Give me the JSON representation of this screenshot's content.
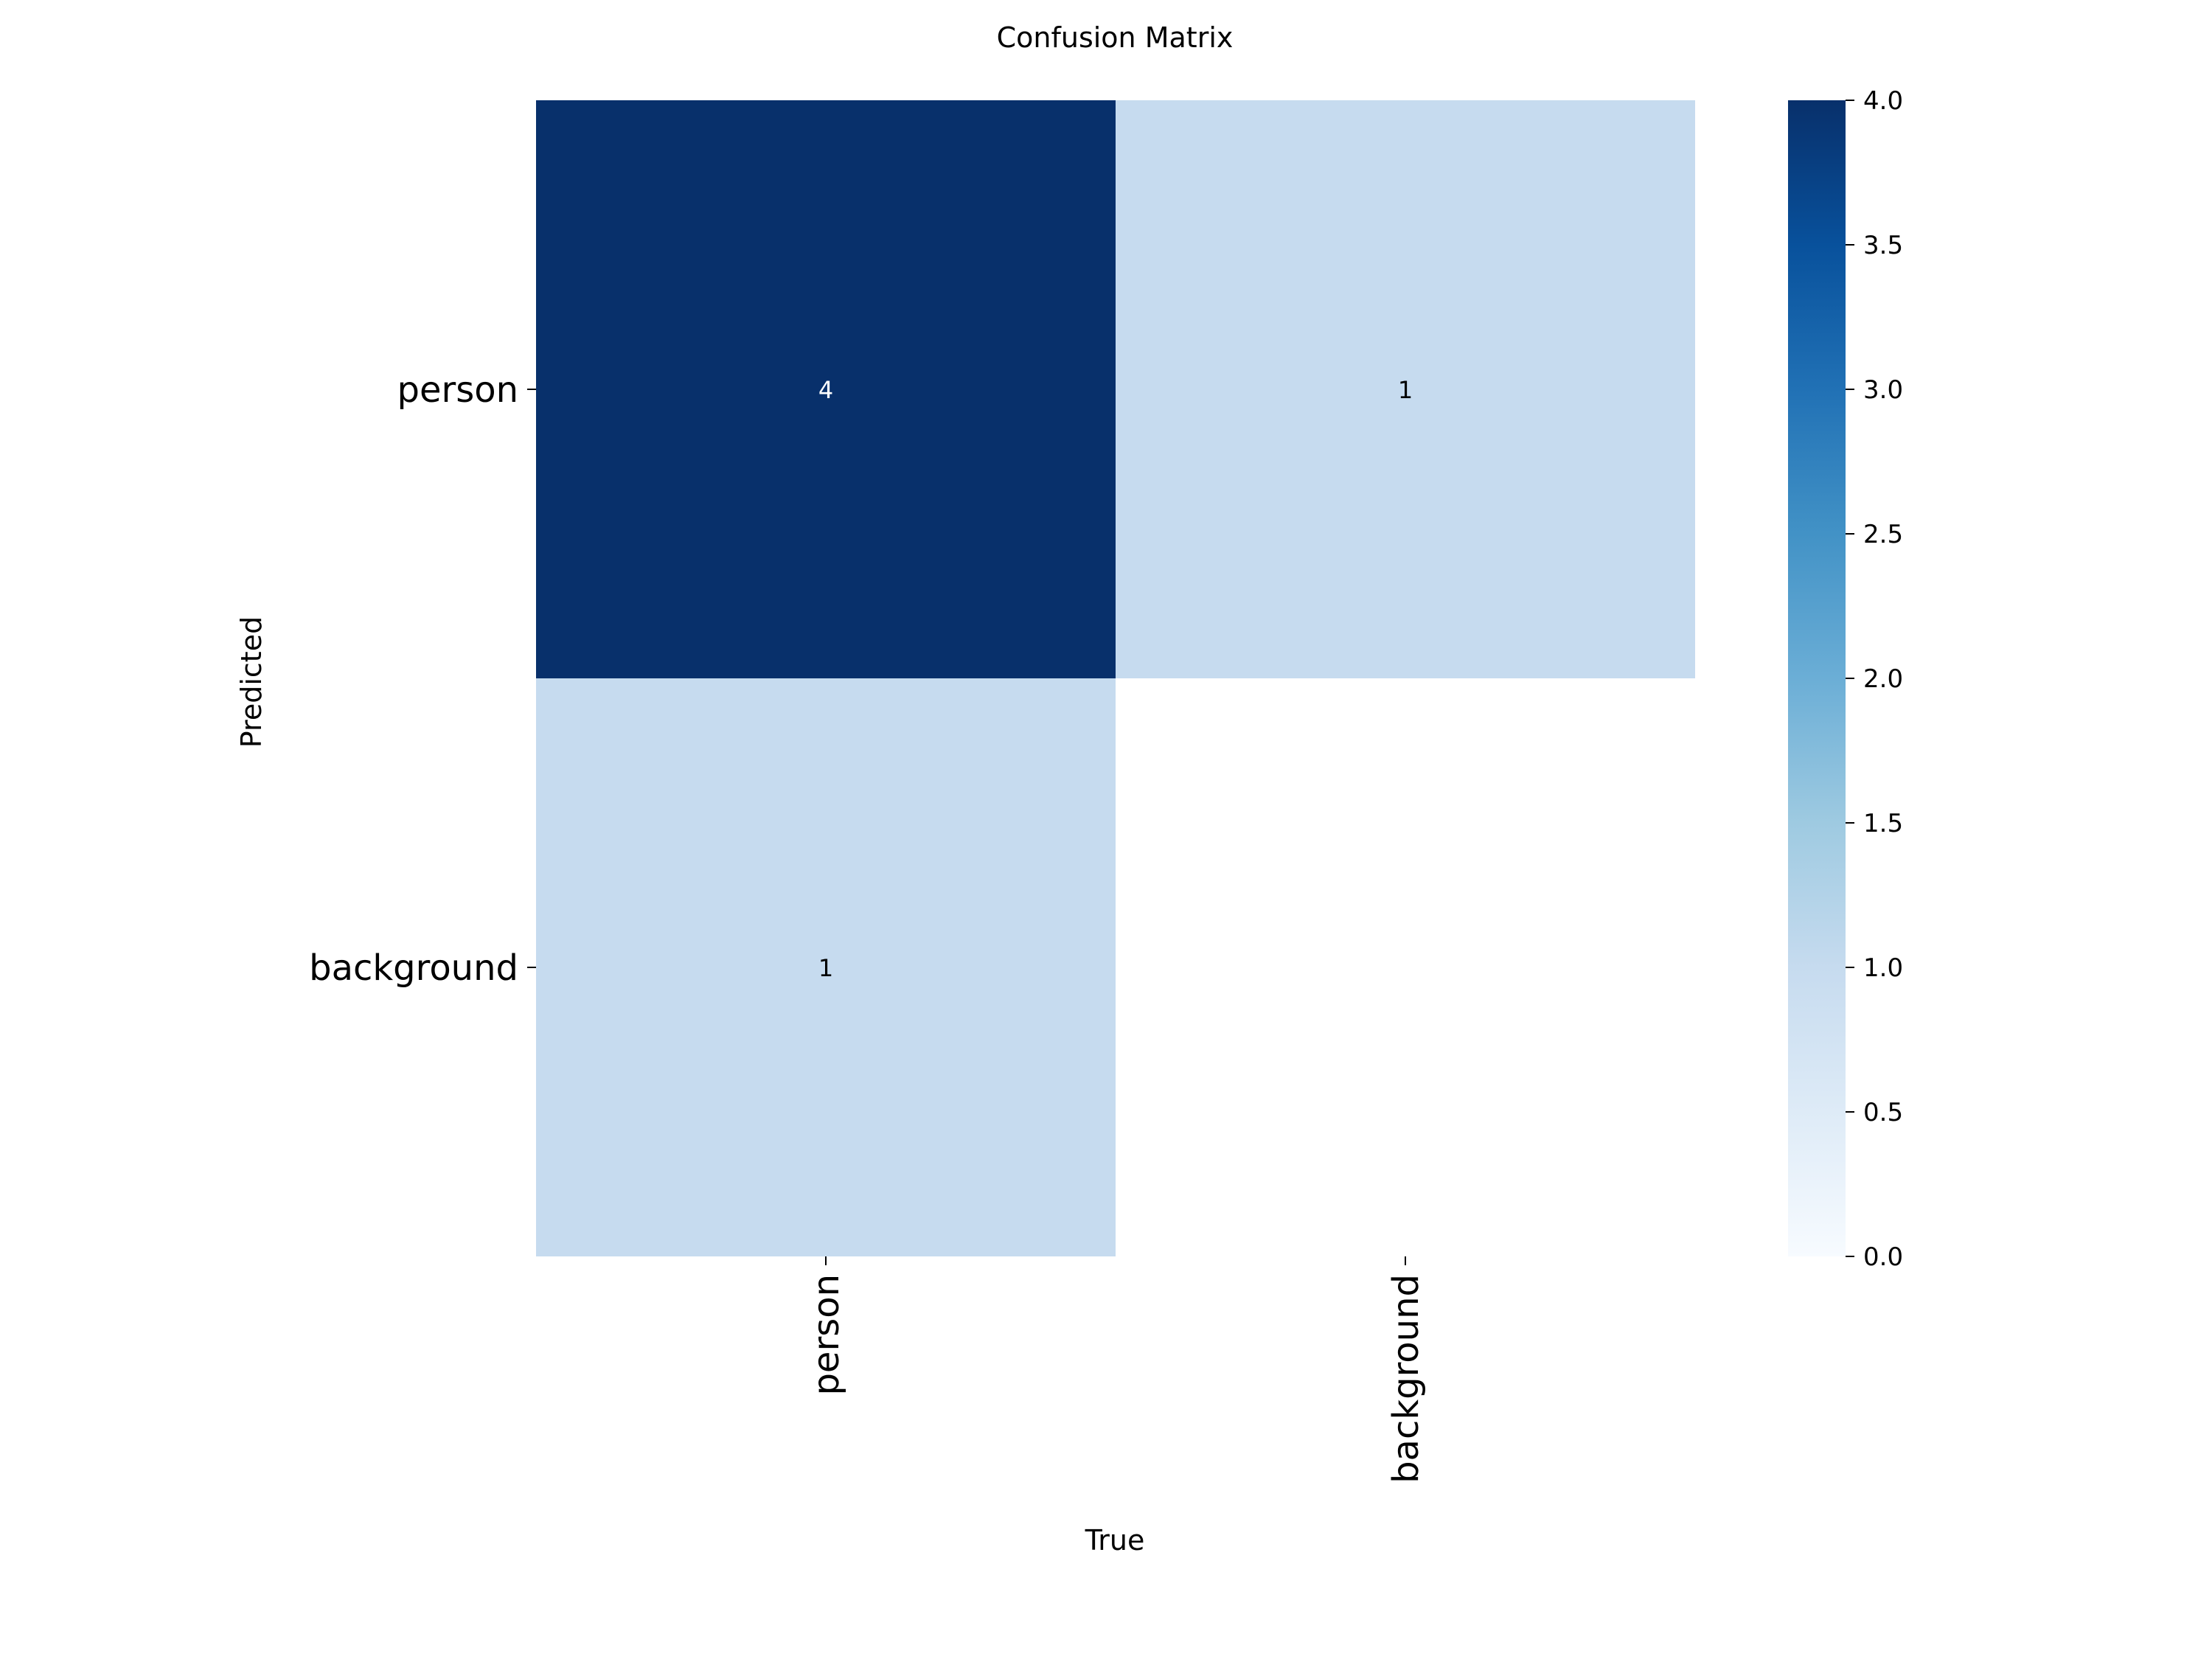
{
  "chart_data": {
    "type": "heatmap",
    "title": "Confusion Matrix",
    "xlabel": "True",
    "ylabel": "Predicted",
    "x_categories": [
      "person",
      "background"
    ],
    "y_categories": [
      "person",
      "background"
    ],
    "values": [
      [
        4,
        1
      ],
      [
        1,
        null
      ]
    ],
    "cell_labels": [
      [
        "4",
        "1"
      ],
      [
        "1",
        ""
      ]
    ],
    "colorbar": {
      "range": [
        0,
        4
      ],
      "ticks": [
        "0.0",
        "0.5",
        "1.0",
        "1.5",
        "2.0",
        "2.5",
        "3.0",
        "3.5",
        "4.0"
      ],
      "colormap": "Blues"
    },
    "grid": false
  }
}
